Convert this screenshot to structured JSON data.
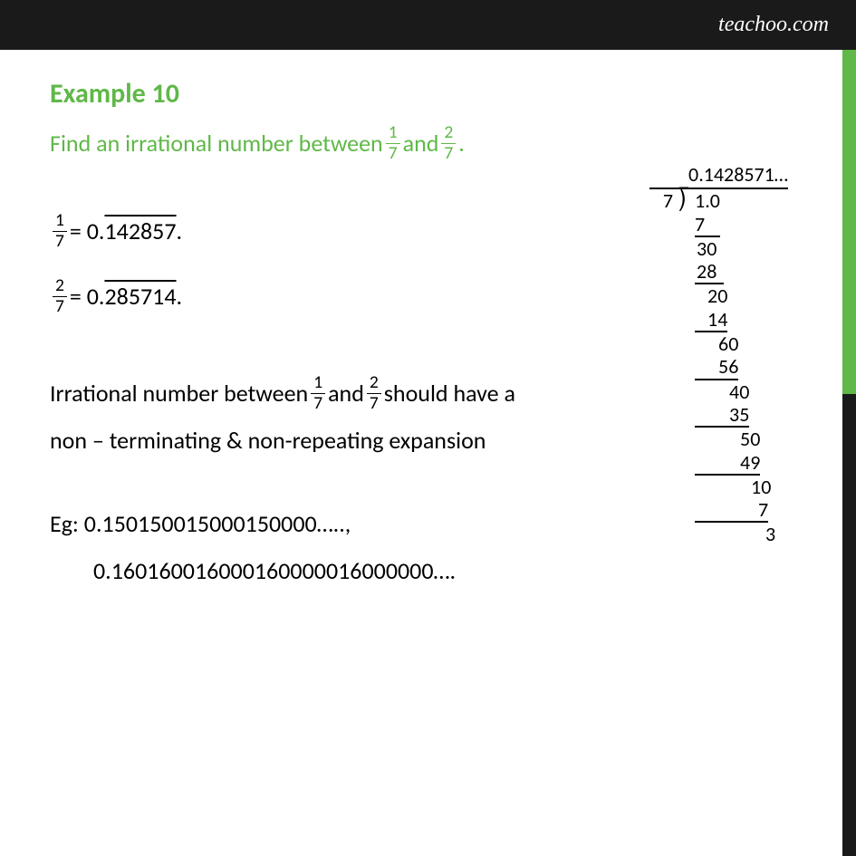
{
  "header": {
    "logo": "teachoo.com"
  },
  "title": "Example 10",
  "question": {
    "part1": "Find an irrational number between ",
    "frac1_num": "1",
    "frac1_den": "7",
    "part2": " and ",
    "frac2_num": "2",
    "frac2_den": "7",
    "part3": "."
  },
  "eq1": {
    "frac_num": "1",
    "frac_den": "7",
    "equals": " = 0.",
    "repeating": "142857",
    "end": "."
  },
  "eq2": {
    "frac_num": "2",
    "frac_den": "7",
    "equals": " = 0.",
    "repeating": "285714",
    "end": "."
  },
  "explanation": {
    "part1": "Irrational number between ",
    "frac1_num": "1",
    "frac1_den": "7",
    "part2": " and ",
    "frac2_num": "2",
    "frac2_den": "7",
    "part3": "  should have a",
    "line2": "non – terminating & non-repeating expansion"
  },
  "examples": {
    "line1": "Eg: 0.150150015000150000…..,",
    "line2": "0.160160016000160000016000000…."
  },
  "long_division": {
    "quotient": "0.1428571…",
    "divisor": "7",
    "dividend": "1.0",
    "steps": [
      {
        "val": "7",
        "pad": 0,
        "ul_width": 28
      },
      {
        "val": "30",
        "pad": 2,
        "ul_width": 0
      },
      {
        "val": "28",
        "pad": 2,
        "ul_width": 32
      },
      {
        "val": "20",
        "pad": 14,
        "ul_width": 0
      },
      {
        "val": "14",
        "pad": 14,
        "ul_width": 32
      },
      {
        "val": "60",
        "pad": 26,
        "ul_width": 0
      },
      {
        "val": "56",
        "pad": 26,
        "ul_width": 32
      },
      {
        "val": "40",
        "pad": 38,
        "ul_width": 0
      },
      {
        "val": "35",
        "pad": 38,
        "ul_width": 32
      },
      {
        "val": "50",
        "pad": 50,
        "ul_width": 0
      },
      {
        "val": "49",
        "pad": 50,
        "ul_width": 32
      },
      {
        "val": "10",
        "pad": 62,
        "ul_width": 0
      },
      {
        "val": "7",
        "pad": 70,
        "ul_width": 28
      },
      {
        "val": "3",
        "pad": 78,
        "ul_width": 0
      }
    ]
  },
  "colors": {
    "green": "#5fb848",
    "black": "#1a1a1a",
    "text": "#000000",
    "bg": "#ffffff"
  }
}
